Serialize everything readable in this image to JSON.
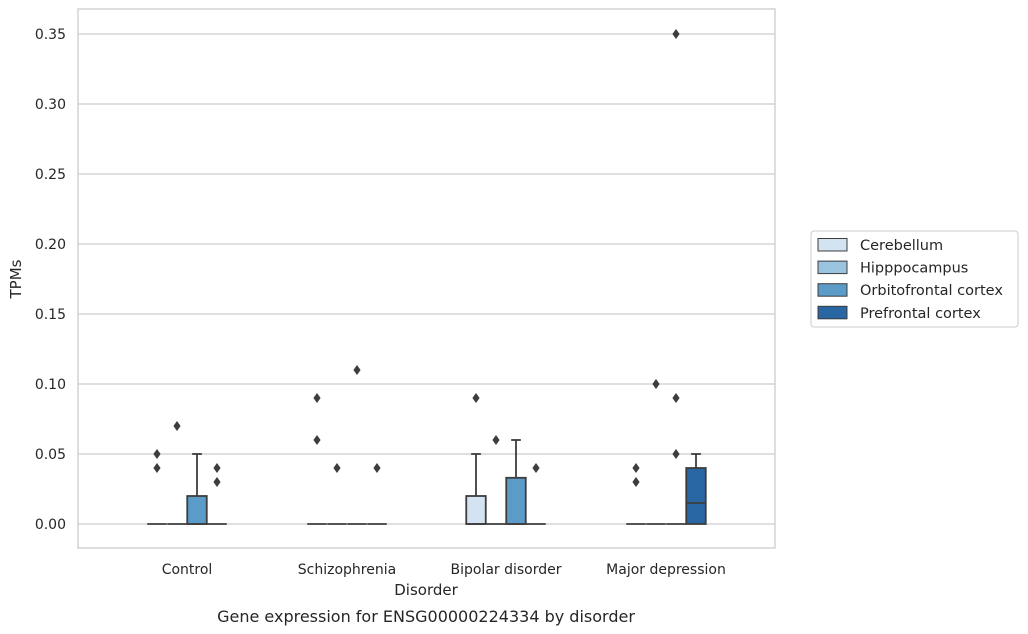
{
  "caption": "Gene expression for ENSG00000224334 by disorder",
  "chart_data": {
    "type": "box",
    "xlabel": "Disorder",
    "ylabel": "TPMs",
    "ylim": [
      -0.017,
      0.367
    ],
    "yticks": [
      0.0,
      0.05,
      0.1,
      0.15,
      0.2,
      0.25,
      0.3,
      0.35
    ],
    "ytick_labels": [
      "0.00",
      "0.05",
      "0.10",
      "0.15",
      "0.20",
      "0.25",
      "0.30",
      "0.35"
    ],
    "grid": true,
    "legend_position": "right",
    "categories": [
      "Control",
      "Schizophrenia",
      "Bipolar disorder",
      "Major depression"
    ],
    "series": [
      {
        "name": "Cerebellum",
        "color": "#d4e3f1",
        "boxes": [
          {
            "q1": 0,
            "median": 0,
            "q3": 0,
            "whisker_low": 0,
            "whisker_high": 0,
            "outliers": [
              0.04,
              0.05
            ]
          },
          {
            "q1": 0,
            "median": 0,
            "q3": 0,
            "whisker_low": 0,
            "whisker_high": 0,
            "outliers": [
              0.06,
              0.09
            ]
          },
          {
            "q1": 0,
            "median": 0,
            "q3": 0.02,
            "whisker_low": 0,
            "whisker_high": 0.05,
            "outliers": [
              0.09
            ]
          },
          {
            "q1": 0,
            "median": 0,
            "q3": 0,
            "whisker_low": 0,
            "whisker_high": 0,
            "outliers": [
              0.03,
              0.04
            ]
          }
        ]
      },
      {
        "name": "Hipppocampus",
        "color": "#9ac3e0",
        "boxes": [
          {
            "q1": 0,
            "median": 0,
            "q3": 0,
            "whisker_low": 0,
            "whisker_high": 0,
            "outliers": [
              0.07
            ]
          },
          {
            "q1": 0,
            "median": 0,
            "q3": 0,
            "whisker_low": 0,
            "whisker_high": 0,
            "outliers": [
              0.04
            ]
          },
          {
            "q1": 0,
            "median": 0,
            "q3": 0,
            "whisker_low": 0,
            "whisker_high": 0,
            "outliers": [
              0.06
            ]
          },
          {
            "q1": 0,
            "median": 0,
            "q3": 0,
            "whisker_low": 0,
            "whisker_high": 0,
            "outliers": [
              0.1
            ]
          }
        ]
      },
      {
        "name": "Orbitofrontal cortex",
        "color": "#5a9bc8",
        "boxes": [
          {
            "q1": 0,
            "median": 0,
            "q3": 0.02,
            "whisker_low": 0,
            "whisker_high": 0.05,
            "outliers": []
          },
          {
            "q1": 0,
            "median": 0,
            "q3": 0,
            "whisker_low": 0,
            "whisker_high": 0,
            "outliers": [
              0.11
            ]
          },
          {
            "q1": 0,
            "median": 0,
            "q3": 0.033,
            "whisker_low": 0,
            "whisker_high": 0.06,
            "outliers": []
          },
          {
            "q1": 0,
            "median": 0,
            "q3": 0,
            "whisker_low": 0,
            "whisker_high": 0,
            "outliers": [
              0.05,
              0.09,
              0.35
            ]
          }
        ]
      },
      {
        "name": "Prefrontal cortex",
        "color": "#2966a4",
        "boxes": [
          {
            "q1": 0,
            "median": 0,
            "q3": 0,
            "whisker_low": 0,
            "whisker_high": 0,
            "outliers": [
              0.03,
              0.04
            ]
          },
          {
            "q1": 0,
            "median": 0,
            "q3": 0,
            "whisker_low": 0,
            "whisker_high": 0,
            "outliers": [
              0.04
            ]
          },
          {
            "q1": 0,
            "median": 0,
            "q3": 0,
            "whisker_low": 0,
            "whisker_high": 0,
            "outliers": [
              0.04
            ]
          },
          {
            "q1": 0,
            "median": 0.015,
            "q3": 0.04,
            "whisker_low": 0,
            "whisker_high": 0.05,
            "outliers": []
          }
        ]
      }
    ]
  },
  "colors": {
    "grid": "#cccccc",
    "axes_edge": "#cccccc",
    "box_edge": "#3d3d3d",
    "outlier": "#3d3d3d",
    "text": "#262626"
  }
}
